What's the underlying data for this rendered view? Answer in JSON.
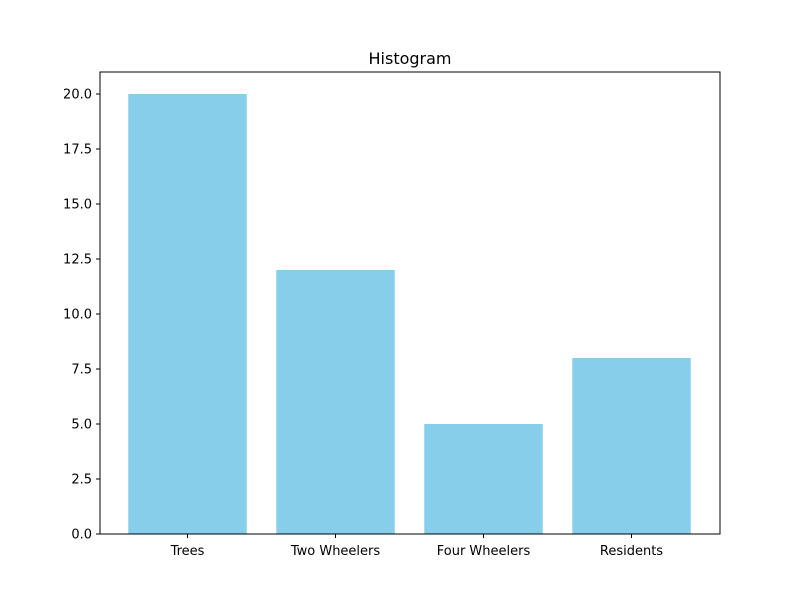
{
  "chart_data": {
    "type": "bar",
    "title": "Histogram",
    "xlabel": "",
    "ylabel": "",
    "categories": [
      "Trees",
      "Two Wheelers",
      "Four Wheelers",
      "Residents"
    ],
    "values": [
      20,
      12,
      5,
      8
    ],
    "ylim": [
      0,
      21
    ],
    "yticks": [
      0.0,
      2.5,
      5.0,
      7.5,
      10.0,
      12.5,
      15.0,
      17.5,
      20.0
    ],
    "ytick_labels": [
      "0.0",
      "2.5",
      "5.0",
      "7.5",
      "10.0",
      "12.5",
      "15.0",
      "17.5",
      "20.0"
    ],
    "bar_color": "#87ceeb",
    "grid": false,
    "legend": "none"
  }
}
